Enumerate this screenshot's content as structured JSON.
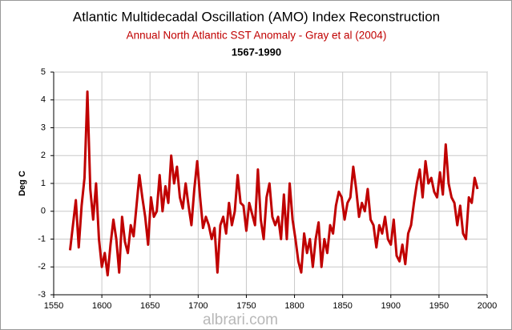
{
  "chart_data": {
    "type": "line",
    "title": "Atlantic Multidecadal Oscillation (AMO) Index Reconstruction",
    "subtitle": "Annual North Atlantic SST Anomaly  - Gray et al (2004)",
    "period": "1567-1990",
    "y_label": "Deg C",
    "watermark": "albrari.com",
    "x": [
      1567,
      1570,
      1573,
      1576,
      1579,
      1582,
      1585,
      1588,
      1591,
      1594,
      1597,
      1600,
      1603,
      1606,
      1609,
      1612,
      1615,
      1618,
      1621,
      1624,
      1627,
      1630,
      1633,
      1636,
      1639,
      1642,
      1645,
      1648,
      1651,
      1654,
      1657,
      1660,
      1663,
      1666,
      1669,
      1672,
      1675,
      1678,
      1681,
      1684,
      1687,
      1690,
      1693,
      1696,
      1699,
      1702,
      1705,
      1708,
      1711,
      1714,
      1717,
      1720,
      1723,
      1726,
      1729,
      1732,
      1735,
      1738,
      1741,
      1744,
      1747,
      1750,
      1753,
      1756,
      1759,
      1762,
      1765,
      1768,
      1771,
      1774,
      1777,
      1780,
      1783,
      1786,
      1789,
      1792,
      1795,
      1798,
      1801,
      1804,
      1807,
      1810,
      1813,
      1816,
      1819,
      1822,
      1825,
      1828,
      1831,
      1834,
      1837,
      1840,
      1843,
      1846,
      1849,
      1852,
      1855,
      1858,
      1861,
      1864,
      1867,
      1870,
      1873,
      1876,
      1879,
      1882,
      1885,
      1888,
      1891,
      1894,
      1897,
      1900,
      1903,
      1906,
      1909,
      1912,
      1915,
      1918,
      1921,
      1924,
      1927,
      1930,
      1933,
      1936,
      1939,
      1942,
      1945,
      1948,
      1951,
      1954,
      1957,
      1960,
      1963,
      1966,
      1969,
      1972,
      1975,
      1978,
      1981,
      1984,
      1987,
      1990
    ],
    "series": [
      {
        "name": "AMO",
        "color": "#c00000",
        "values": [
          -1.4,
          -0.5,
          0.4,
          -1.3,
          0.2,
          1.2,
          4.3,
          0.8,
          -0.3,
          1.0,
          -1.0,
          -2.0,
          -1.5,
          -2.3,
          -1.2,
          -0.3,
          -1.0,
          -2.2,
          -0.2,
          -1.1,
          -1.5,
          -0.5,
          -0.9,
          0.2,
          1.3,
          0.5,
          -0.2,
          -1.2,
          0.5,
          -0.2,
          0.0,
          1.3,
          0.0,
          0.9,
          0.3,
          2.0,
          1.0,
          1.6,
          0.5,
          0.1,
          1.0,
          0.2,
          -0.5,
          0.8,
          1.8,
          0.5,
          -0.6,
          -0.2,
          -0.5,
          -1.0,
          -0.6,
          -2.2,
          -0.5,
          -0.2,
          -0.8,
          0.3,
          -0.5,
          0.0,
          1.3,
          0.3,
          0.2,
          -0.7,
          0.3,
          -0.1,
          -0.5,
          1.5,
          -0.3,
          -1.0,
          0.5,
          1.0,
          -0.2,
          -0.5,
          -0.2,
          -1.0,
          0.6,
          -1.0,
          1.0,
          -0.3,
          -1.0,
          -1.8,
          -2.2,
          -0.8,
          -1.5,
          -1.0,
          -2.0,
          -1.0,
          -0.4,
          -2.0,
          -1.0,
          -1.5,
          -0.5,
          -0.8,
          0.2,
          0.7,
          0.5,
          -0.3,
          0.3,
          0.5,
          1.6,
          0.8,
          -0.2,
          0.3,
          0.0,
          0.8,
          -0.3,
          -0.5,
          -1.3,
          -0.5,
          -0.8,
          -0.2,
          -1.0,
          -1.2,
          -0.3,
          -1.6,
          -1.8,
          -1.2,
          -1.9,
          -0.8,
          -0.5,
          0.3,
          1.0,
          1.5,
          0.5,
          1.8,
          1.0,
          1.2,
          0.7,
          0.5,
          1.4,
          0.6,
          2.4,
          1.0,
          0.5,
          0.3,
          -0.5,
          0.2,
          -0.8,
          -1.0,
          0.5,
          0.3,
          1.2,
          0.8
        ]
      }
    ],
    "xlim": [
      1550,
      2000
    ],
    "xticks": [
      1550,
      1600,
      1650,
      1700,
      1750,
      1800,
      1850,
      1900,
      1950,
      2000
    ],
    "ylim": [
      -3,
      5
    ],
    "yticks": [
      -3,
      -2,
      -1,
      0,
      1,
      2,
      3,
      4,
      5
    ],
    "grid": true
  }
}
